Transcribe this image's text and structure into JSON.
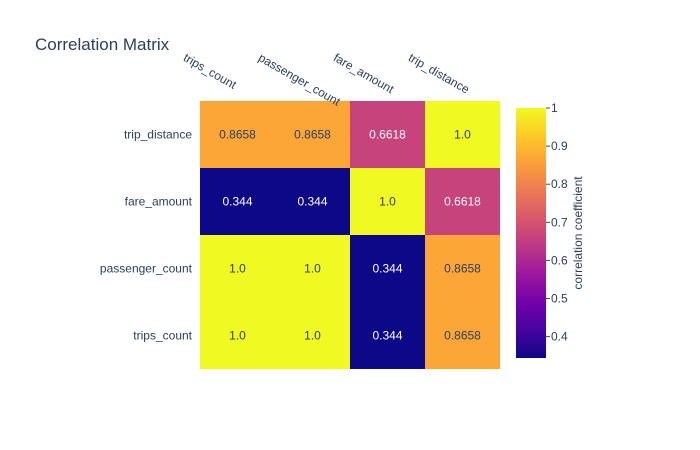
{
  "chart_data": {
    "type": "heatmap",
    "title": "Correlation Matrix",
    "x_categories": [
      "trips_count",
      "passenger_count",
      "fare_amount",
      "trip_distance"
    ],
    "y_categories": [
      "trips_count",
      "passenger_count",
      "fare_amount",
      "trip_distance"
    ],
    "z": [
      [
        1.0,
        1.0,
        0.344,
        0.8658
      ],
      [
        1.0,
        1.0,
        0.344,
        0.8658
      ],
      [
        0.344,
        0.344,
        1.0,
        0.6618
      ],
      [
        0.8658,
        0.8658,
        0.6618,
        1.0
      ]
    ],
    "cell_text": [
      [
        "1.0",
        "1.0",
        "0.344",
        "0.8658"
      ],
      [
        "1.0",
        "1.0",
        "0.344",
        "0.8658"
      ],
      [
        "0.344",
        "0.344",
        "1.0",
        "0.6618"
      ],
      [
        "0.8658",
        "0.8658",
        "0.6618",
        "1.0"
      ]
    ],
    "zrange": [
      0.344,
      1.0
    ],
    "colorscale": [
      "#0d0887",
      "#46039f",
      "#7201a8",
      "#9c179e",
      "#bd3786",
      "#d8576b",
      "#ed7953",
      "#fb9f3a",
      "#fdca26",
      "#f0f921"
    ],
    "colorbar": {
      "title": "correlation coefficient",
      "ticks": [
        "0.4",
        "0.5",
        "0.6",
        "0.7",
        "0.8",
        "0.9",
        "1"
      ]
    }
  }
}
